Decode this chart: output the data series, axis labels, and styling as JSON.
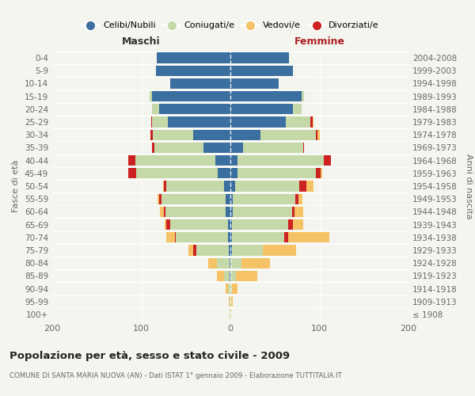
{
  "age_groups": [
    "100+",
    "95-99",
    "90-94",
    "85-89",
    "80-84",
    "75-79",
    "70-74",
    "65-69",
    "60-64",
    "55-59",
    "50-54",
    "45-49",
    "40-44",
    "35-39",
    "30-34",
    "25-29",
    "20-24",
    "15-19",
    "10-14",
    "5-9",
    "0-4"
  ],
  "birth_years": [
    "≤ 1908",
    "1909-1913",
    "1914-1918",
    "1919-1923",
    "1924-1928",
    "1929-1933",
    "1934-1938",
    "1939-1943",
    "1944-1948",
    "1949-1953",
    "1954-1958",
    "1959-1963",
    "1964-1968",
    "1969-1973",
    "1974-1978",
    "1979-1983",
    "1984-1988",
    "1989-1993",
    "1994-1998",
    "1999-2003",
    "2004-2008"
  ],
  "male_celibi": [
    0,
    0,
    0,
    1,
    1,
    2,
    3,
    3,
    5,
    5,
    7,
    14,
    17,
    30,
    42,
    70,
    80,
    88,
    68,
    84,
    83
  ],
  "male_coniugati": [
    1,
    1,
    3,
    6,
    14,
    36,
    58,
    65,
    68,
    72,
    65,
    92,
    90,
    55,
    45,
    18,
    8,
    3,
    0,
    0,
    0
  ],
  "male_vedovi": [
    0,
    1,
    2,
    8,
    10,
    5,
    10,
    2,
    4,
    2,
    1,
    0,
    0,
    0,
    0,
    0,
    0,
    0,
    0,
    0,
    0
  ],
  "male_divorziati": [
    0,
    0,
    0,
    0,
    0,
    4,
    1,
    4,
    2,
    3,
    3,
    9,
    8,
    3,
    3,
    1,
    0,
    0,
    0,
    0,
    0
  ],
  "female_nubili": [
    0,
    0,
    0,
    0,
    0,
    2,
    2,
    2,
    3,
    3,
    5,
    8,
    8,
    14,
    34,
    62,
    70,
    80,
    54,
    70,
    66
  ],
  "female_coniugate": [
    0,
    1,
    2,
    6,
    12,
    34,
    58,
    63,
    66,
    70,
    72,
    88,
    97,
    68,
    62,
    28,
    10,
    3,
    0,
    0,
    0
  ],
  "female_vedove": [
    1,
    2,
    6,
    24,
    32,
    38,
    46,
    12,
    10,
    5,
    8,
    2,
    0,
    0,
    2,
    1,
    0,
    0,
    0,
    0,
    0
  ],
  "female_divorziate": [
    0,
    0,
    0,
    0,
    0,
    0,
    5,
    5,
    3,
    3,
    8,
    5,
    8,
    1,
    2,
    2,
    0,
    0,
    0,
    0,
    0
  ],
  "color_celibi": "#3b6fa0",
  "color_coniugati": "#c5d9a8",
  "color_vedovi": "#f5c265",
  "color_divorziati": "#cc2222",
  "xlim": 200,
  "title": "Popolazione per età, sesso e stato civile - 2009",
  "subtitle": "COMUNE DI SANTA MARIA NUOVA (AN) - Dati ISTAT 1° gennaio 2009 - Elaborazione TUTTITALIA.IT",
  "ylabel_left": "Fasce di età",
  "ylabel_right": "Anni di nascita",
  "label_maschi": "Maschi",
  "label_femmine": "Femmine",
  "legend_items": [
    "Celibi/Nubili",
    "Coniugati/e",
    "Vedovi/e",
    "Divorziati/e"
  ],
  "bg_color": "#f5f5f0"
}
